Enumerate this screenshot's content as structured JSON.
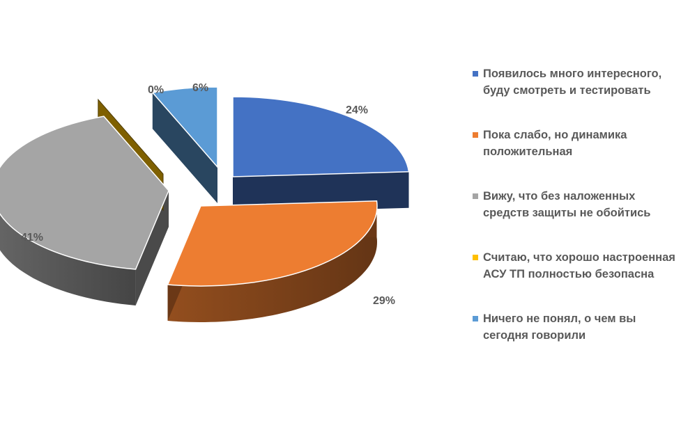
{
  "chart_data": {
    "type": "pie",
    "title": "",
    "legend_position": "right",
    "slices": [
      {
        "label": "Появилось много интересного, буду смотреть и тестировать",
        "value": 24,
        "display": "24%",
        "color": "#4472C4"
      },
      {
        "label": "Пока слабо, но динамика положительная",
        "value": 29,
        "display": "29%",
        "color": "#ED7D31"
      },
      {
        "label": "Вижу, что без наложенных средств защиты не обойтись",
        "value": 41,
        "display": "41%",
        "color": "#A5A5A5"
      },
      {
        "label": "Считаю, что хорошо настроенная АСУ ТП полностью безопасна",
        "value": 0,
        "display": "0%",
        "color": "#FFC000"
      },
      {
        "label": "Ничего не понял, о чем вы сегодня говорили",
        "value": 6,
        "display": "6%",
        "color": "#5B9BD5"
      }
    ]
  }
}
